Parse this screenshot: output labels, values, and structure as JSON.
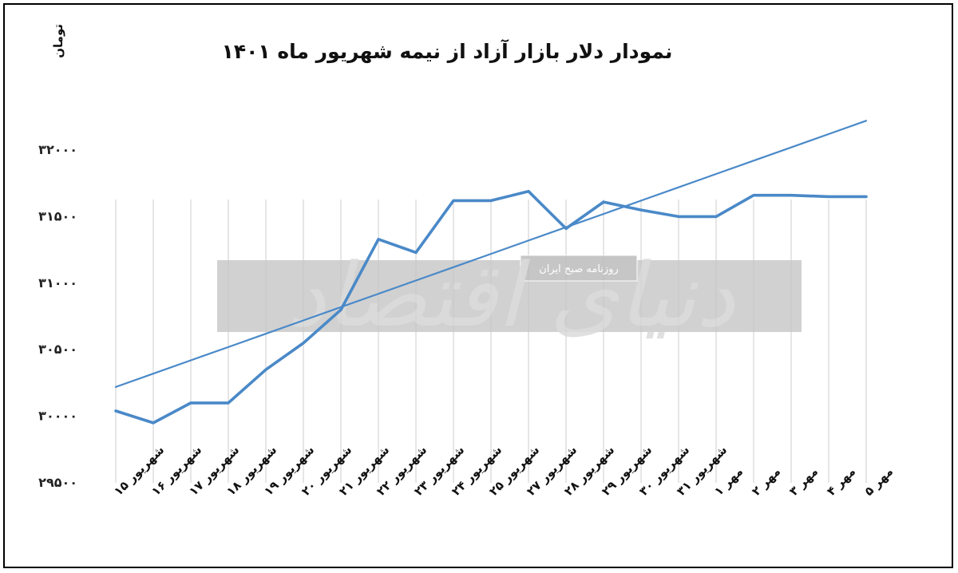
{
  "chart_data": {
    "type": "line",
    "title": "نمودار دلار بازار آزاد از نیمه شهریور ماه ۱۴۰۱",
    "ylabel": "تومان",
    "xlabel": "",
    "categories": [
      "شهریور ۱۵",
      "شهریور ۱۶",
      "شهریور ۱۷",
      "شهریور ۱۸",
      "شهریور ۱۹",
      "شهریور ۲۰",
      "شهریور ۲۱",
      "شهریور ۲۲",
      "شهریور ۲۳",
      "شهریور ۲۴",
      "شهریور ۲۵",
      "شهریور ۲۷",
      "شهریور ۲۸",
      "شهریور ۲۹",
      "شهریور ۳۰",
      "شهریور ۳۱",
      "مهر ۱",
      "مهر ۲",
      "مهر ۳",
      "مهر ۴",
      "مهر ۵"
    ],
    "series": [
      {
        "values": [
          30040,
          29950,
          30100,
          30100,
          30350,
          30550,
          30800,
          31330,
          31230,
          31620,
          31620,
          31690,
          31410,
          31610,
          31550,
          31500,
          31500,
          31660,
          31660,
          31650,
          31650
        ],
        "color": "#4A89C8"
      },
      {
        "type": "trendline",
        "values": [
          30220,
          30320,
          30420,
          30520,
          30620,
          30720,
          30820,
          30920,
          31020,
          31120,
          31220,
          31320,
          31420,
          31520,
          31620,
          31720,
          31820,
          31920,
          32020,
          32120,
          32220
        ],
        "color": "#4A89C8"
      }
    ],
    "yticks": [
      "۲۹۵۰۰",
      "۳۰۰۰۰",
      "۳۰۵۰۰",
      "۳۱۰۰۰",
      "۳۱۵۰۰",
      "۳۲۰۰۰"
    ],
    "ylim": [
      29500,
      32000
    ],
    "grid": {
      "vertical": true,
      "horizontal": false
    },
    "legend": "none"
  },
  "watermark": {
    "logo": "دنیای اقتصاد",
    "tagline": "روزنامه صبح ایران"
  }
}
